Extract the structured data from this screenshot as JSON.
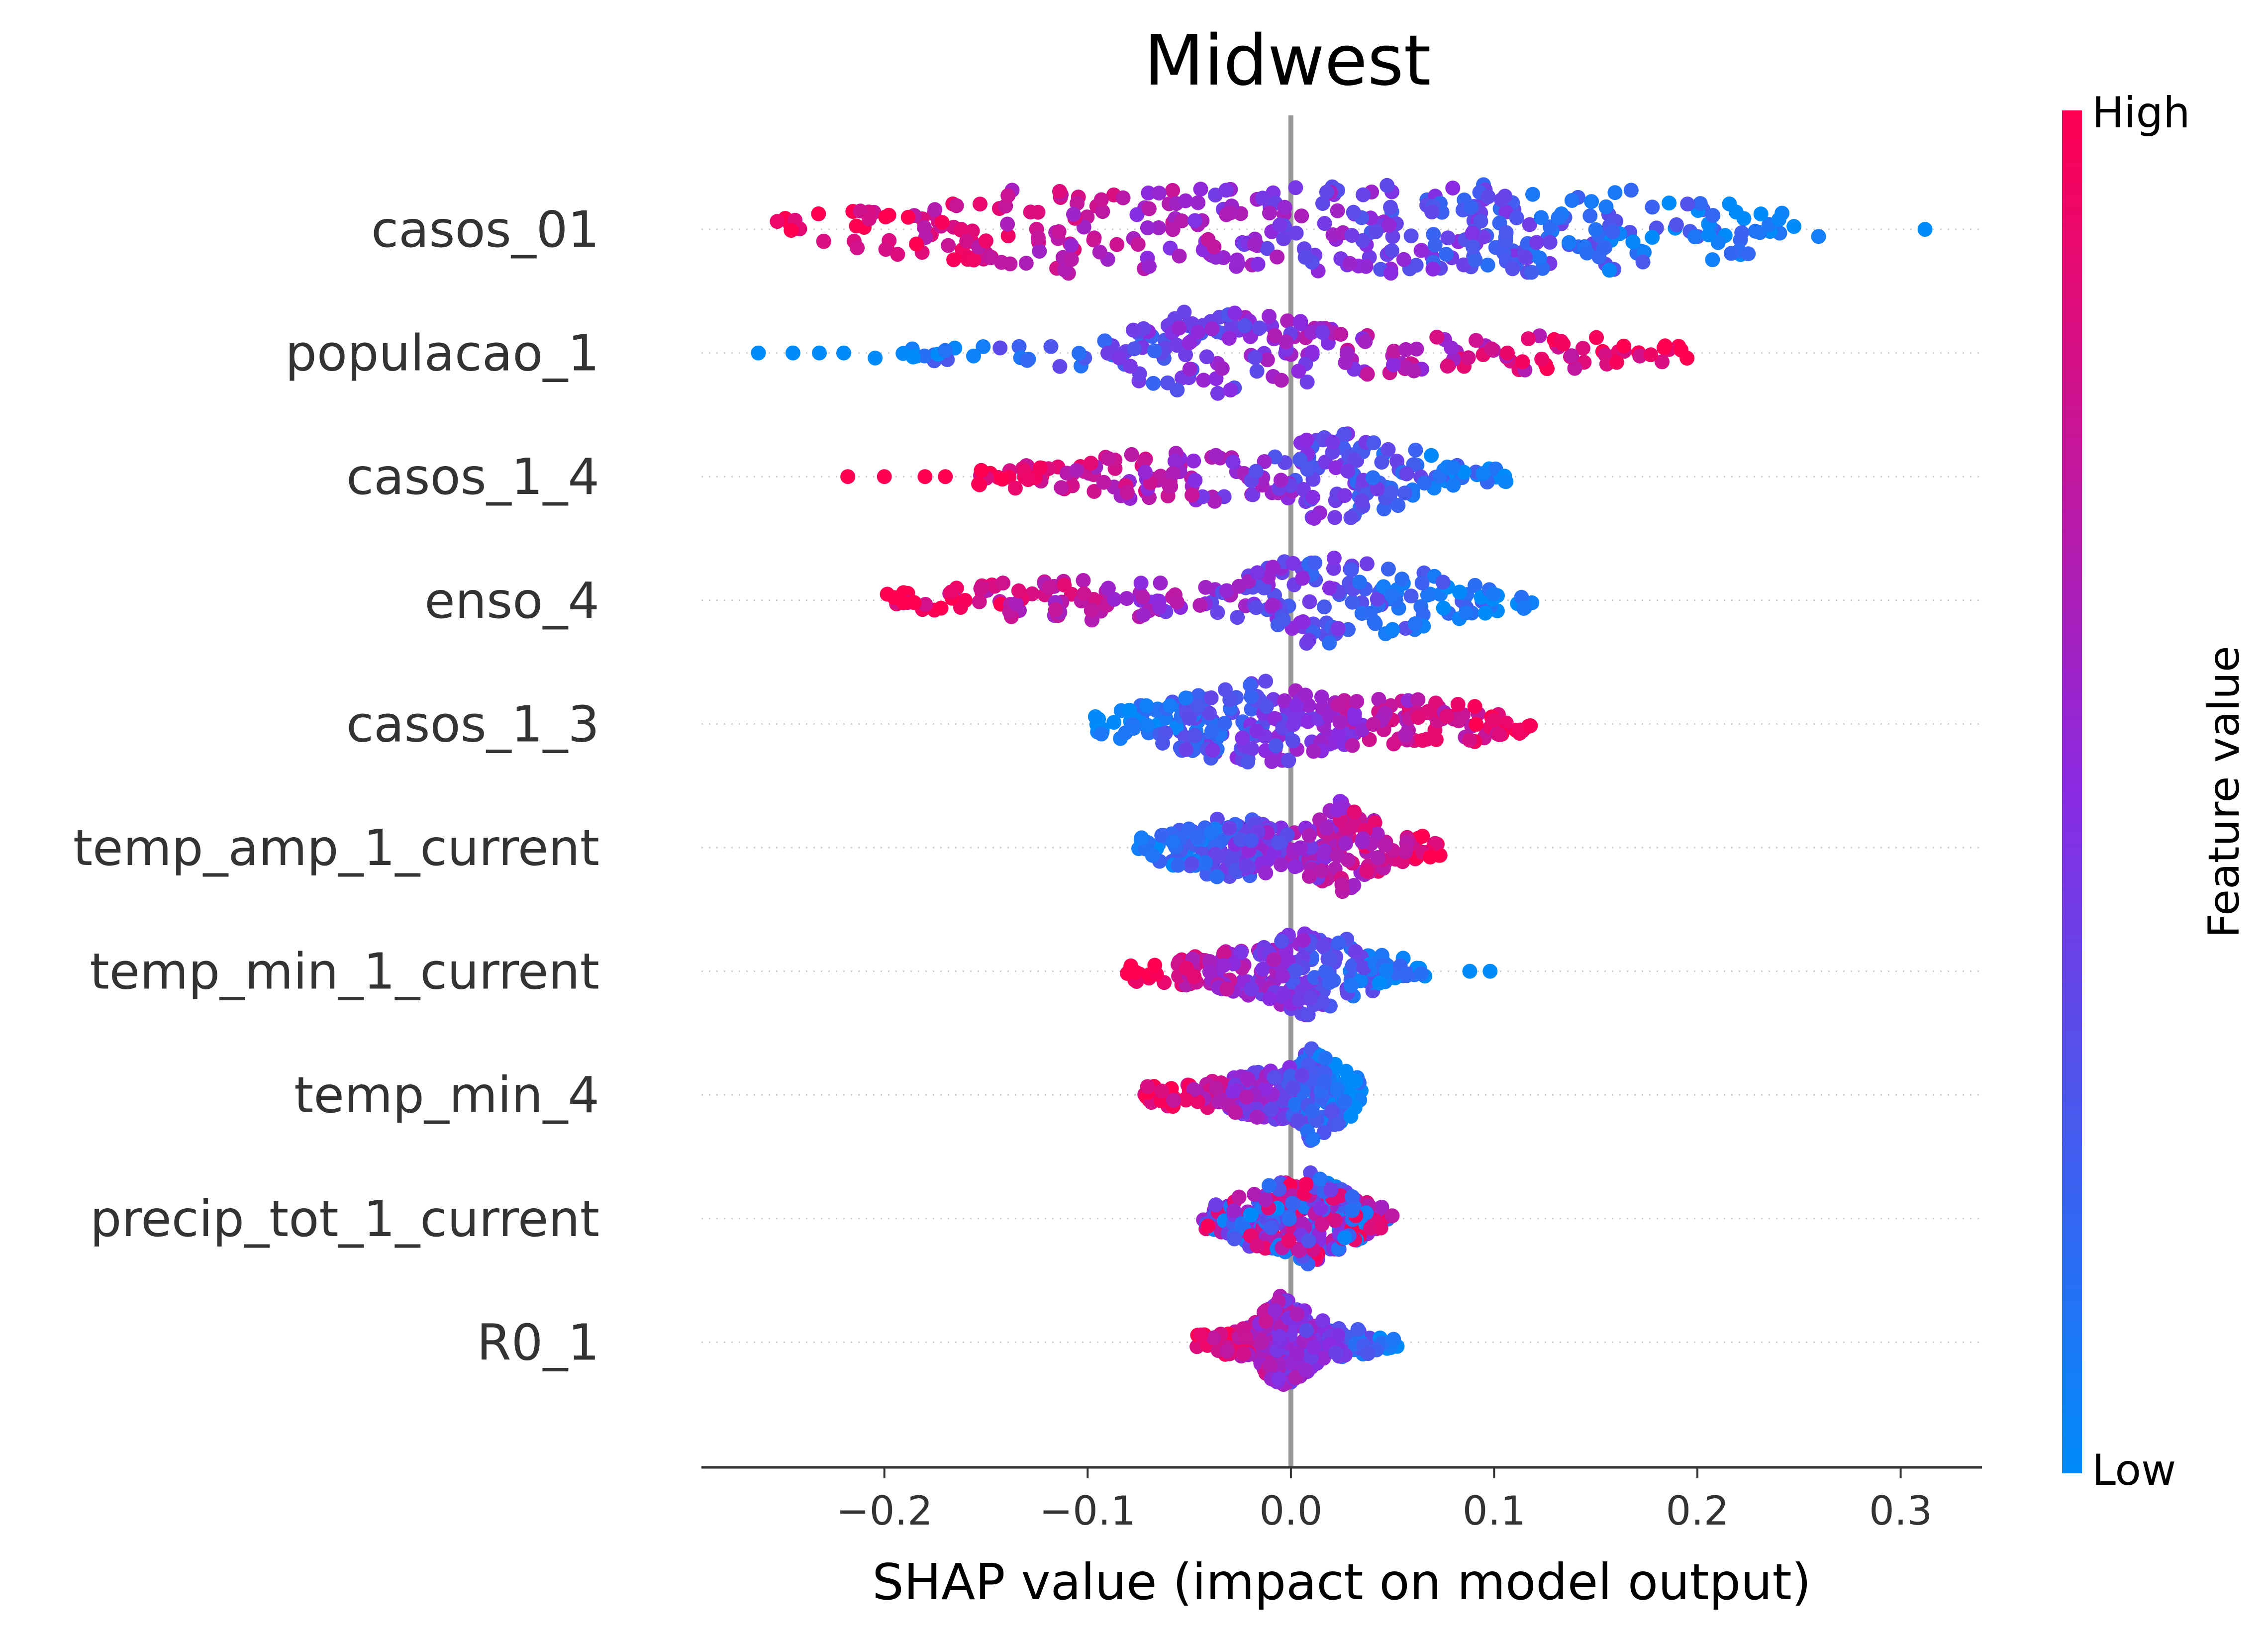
{
  "chart_data": {
    "type": "scatter",
    "subtype": "shap_beeswarm",
    "title": "Midwest",
    "xlabel": "SHAP value (impact on model output)",
    "ylabel": "",
    "xlim": [
      -0.29,
      0.34
    ],
    "x_ticks": [
      -0.2,
      -0.1,
      0.0,
      0.1,
      0.2,
      0.3
    ],
    "x_tick_labels": [
      "−0.2",
      "−0.1",
      "0.0",
      "0.1",
      "0.2",
      "0.3"
    ],
    "grid": false,
    "zero_line": true,
    "features": [
      {
        "name": "casos_01",
        "min": -0.255,
        "max": 0.26,
        "outliers": [
          0.312
        ],
        "gradient": "high_left",
        "width": 1.0,
        "density": [
          [
            -0.255,
            0.25
          ],
          [
            -0.2,
            0.5
          ],
          [
            -0.12,
            0.95
          ],
          [
            -0.03,
            0.85
          ],
          [
            0.07,
            1.0
          ],
          [
            0.19,
            0.85
          ],
          [
            0.26,
            0.25
          ]
        ]
      },
      {
        "name": "populacao_1",
        "min": -0.21,
        "max": 0.195,
        "outliers": [
          -0.262,
          -0.245,
          -0.232,
          -0.22
        ],
        "gradient": "high_right",
        "width": 1.0,
        "density": [
          [
            -0.21,
            0.1
          ],
          [
            -0.1,
            0.35
          ],
          [
            -0.04,
            1.0
          ],
          [
            0.0,
            0.7
          ],
          [
            0.06,
            0.4
          ],
          [
            0.15,
            0.35
          ],
          [
            0.195,
            0.15
          ]
        ]
      },
      {
        "name": "casos_1_4",
        "min": -0.16,
        "max": 0.12,
        "outliers": [
          -0.218,
          -0.2,
          -0.18,
          -0.17
        ],
        "gradient": "high_left",
        "width": 1.0,
        "density": [
          [
            -0.16,
            0.15
          ],
          [
            -0.07,
            0.5
          ],
          [
            -0.02,
            0.55
          ],
          [
            0.02,
            1.0
          ],
          [
            0.06,
            0.6
          ],
          [
            0.09,
            0.2
          ],
          [
            0.12,
            0.1
          ]
        ]
      },
      {
        "name": "enso_4",
        "min": -0.2,
        "max": 0.12,
        "outliers": [],
        "gradient": "high_left",
        "width": 1.0,
        "density": [
          [
            -0.2,
            0.15
          ],
          [
            -0.12,
            0.45
          ],
          [
            -0.03,
            0.35
          ],
          [
            0.005,
            1.0
          ],
          [
            0.05,
            0.75
          ],
          [
            0.1,
            0.25
          ],
          [
            0.12,
            0.15
          ]
        ]
      },
      {
        "name": "casos_1_3",
        "min": -0.1,
        "max": 0.12,
        "outliers": [],
        "gradient": "high_right",
        "width": 1.0,
        "density": [
          [
            -0.1,
            0.15
          ],
          [
            -0.04,
            0.75
          ],
          [
            -0.01,
            1.0
          ],
          [
            0.02,
            0.5
          ],
          [
            0.07,
            0.55
          ],
          [
            0.12,
            0.15
          ]
        ]
      },
      {
        "name": "temp_amp_1_current",
        "min": -0.075,
        "max": 0.075,
        "outliers": [],
        "gradient": "high_right",
        "width": 1.0,
        "density": [
          [
            -0.075,
            0.2
          ],
          [
            -0.03,
            0.7
          ],
          [
            0.0,
            0.45
          ],
          [
            0.025,
            1.0
          ],
          [
            0.05,
            0.4
          ],
          [
            0.075,
            0.15
          ]
        ]
      },
      {
        "name": "temp_min_1_current",
        "min": -0.083,
        "max": 0.067,
        "outliers": [
          0.088,
          0.098
        ],
        "gradient": "high_left",
        "width": 1.0,
        "density": [
          [
            -0.083,
            0.2
          ],
          [
            -0.04,
            0.35
          ],
          [
            -0.01,
            0.6
          ],
          [
            0.01,
            1.0
          ],
          [
            0.04,
            0.45
          ],
          [
            0.067,
            0.15
          ]
        ]
      },
      {
        "name": "temp_min_4",
        "min": -0.072,
        "max": 0.035,
        "outliers": [],
        "gradient": "high_left",
        "width": 1.0,
        "density": [
          [
            -0.072,
            0.2
          ],
          [
            -0.03,
            0.35
          ],
          [
            0.0,
            0.65
          ],
          [
            0.01,
            1.0
          ],
          [
            0.035,
            0.3
          ]
        ]
      },
      {
        "name": "precip_tot_1_current",
        "min": -0.043,
        "max": 0.05,
        "outliers": [],
        "gradient": "mixed",
        "width": 1.0,
        "density": [
          [
            -0.043,
            0.2
          ],
          [
            -0.02,
            0.6
          ],
          [
            0.0,
            0.85
          ],
          [
            0.01,
            1.0
          ],
          [
            0.03,
            0.5
          ],
          [
            0.05,
            0.15
          ]
        ]
      },
      {
        "name": "R0_1",
        "min": -0.048,
        "max": 0.056,
        "outliers": [],
        "gradient": "high_left",
        "width": 1.0,
        "density": [
          [
            -0.048,
            0.15
          ],
          [
            -0.02,
            0.35
          ],
          [
            -0.005,
            1.0
          ],
          [
            0.02,
            0.35
          ],
          [
            0.056,
            0.15
          ]
        ]
      }
    ],
    "colorbar": {
      "title": "Feature value",
      "high_label": "High",
      "low_label": "Low",
      "high_color": "#ff0052",
      "mid_color": "#8a2be2",
      "low_color": "#008bfb"
    },
    "colors": {
      "zero_line": "#999999",
      "guide_line": "#cccccc",
      "axis": "#333333"
    }
  }
}
